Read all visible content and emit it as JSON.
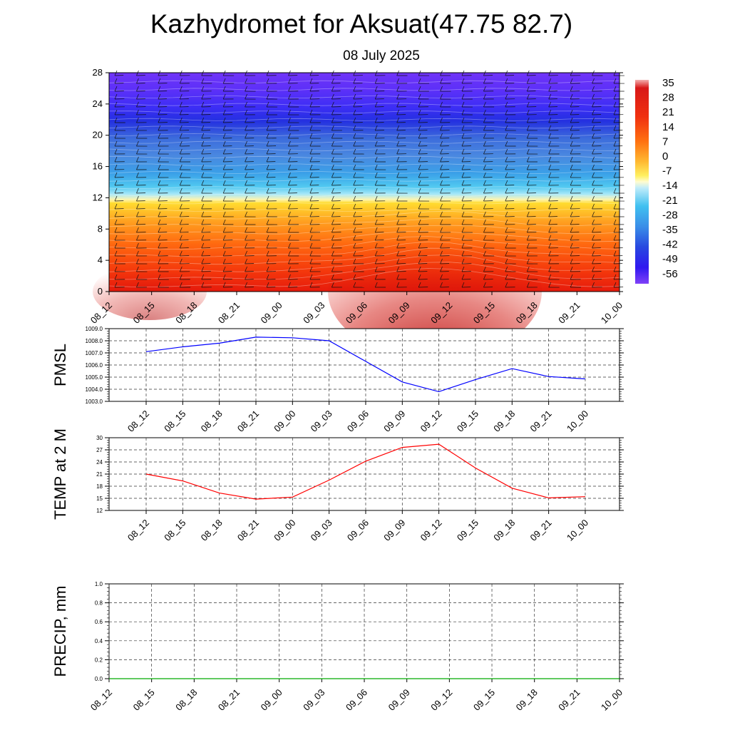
{
  "header": {
    "title": "Kazhydromet for Aksuat(47.75 82.7)",
    "subtitle": "08 July 2025"
  },
  "chart_data": [
    {
      "type": "heatmap",
      "name": "vertical-section",
      "xticks": [
        "08_12",
        "08_15",
        "08_18",
        "08_21",
        "09_00",
        "09_03",
        "09_06",
        "09_09",
        "09_12",
        "09_15",
        "09_18",
        "09_21",
        "10_00"
      ],
      "yticks": [
        0,
        4,
        8,
        12,
        16,
        20,
        24,
        28
      ],
      "ylim": [
        0,
        28
      ],
      "colorbar": {
        "labels": [
          35,
          28,
          21,
          14,
          7,
          0,
          -7,
          -14,
          -21,
          -28,
          -35,
          -42,
          -49,
          -56
        ],
        "range": [
          -60,
          38
        ]
      },
      "wind_barbs": true
    },
    {
      "type": "line",
      "name": "pmsl",
      "ylabel": "PMSL",
      "ylim": [
        1003.0,
        1009.0
      ],
      "yticks": [
        "1003.0",
        "1004.0",
        "1005.0",
        "1006.0",
        "1007.0",
        "1008.0",
        "1009.0"
      ],
      "categories": [
        "08_12",
        "08_15",
        "08_18",
        "08_21",
        "09_00",
        "09_03",
        "09_06",
        "09_09",
        "09_12",
        "09_15",
        "09_18",
        "09_21",
        "10_00"
      ],
      "values": [
        1007.1,
        1007.5,
        1007.8,
        1008.3,
        1008.25,
        1008.0,
        1006.3,
        1004.6,
        1003.8,
        1004.8,
        1005.7,
        1005.05,
        1004.85
      ],
      "color": "#0000ff",
      "grid": true
    },
    {
      "type": "line",
      "name": "temp2m",
      "ylabel": "TEMP at 2 M",
      "ylim": [
        12,
        30
      ],
      "yticks": [
        "12",
        "15",
        "18",
        "21",
        "24",
        "27",
        "30"
      ],
      "categories": [
        "08_12",
        "08_15",
        "08_18",
        "08_21",
        "09_00",
        "09_03",
        "09_06",
        "09_09",
        "09_12",
        "09_15",
        "09_18",
        "09_21",
        "10_00"
      ],
      "values": [
        21.0,
        19.3,
        16.3,
        14.8,
        15.3,
        19.5,
        24.2,
        27.6,
        28.4,
        22.5,
        17.5,
        15.1,
        15.4
      ],
      "color": "#ff0000",
      "grid": true
    },
    {
      "type": "line",
      "name": "precip",
      "ylabel": "PRECIP, mm",
      "ylim": [
        0.0,
        1.0
      ],
      "yticks": [
        "0.0",
        "0.2",
        "0.4",
        "0.6",
        "0.8",
        "1.0"
      ],
      "categories": [
        "08_12",
        "08_15",
        "08_18",
        "08_21",
        "09_00",
        "09_03",
        "09_06",
        "09_09",
        "09_12",
        "09_15",
        "09_18",
        "09_21",
        "10_00"
      ],
      "values": [
        0,
        0,
        0,
        0,
        0,
        0,
        0,
        0,
        0,
        0,
        0,
        0,
        0
      ],
      "color": "#00aa00",
      "grid": true
    }
  ]
}
